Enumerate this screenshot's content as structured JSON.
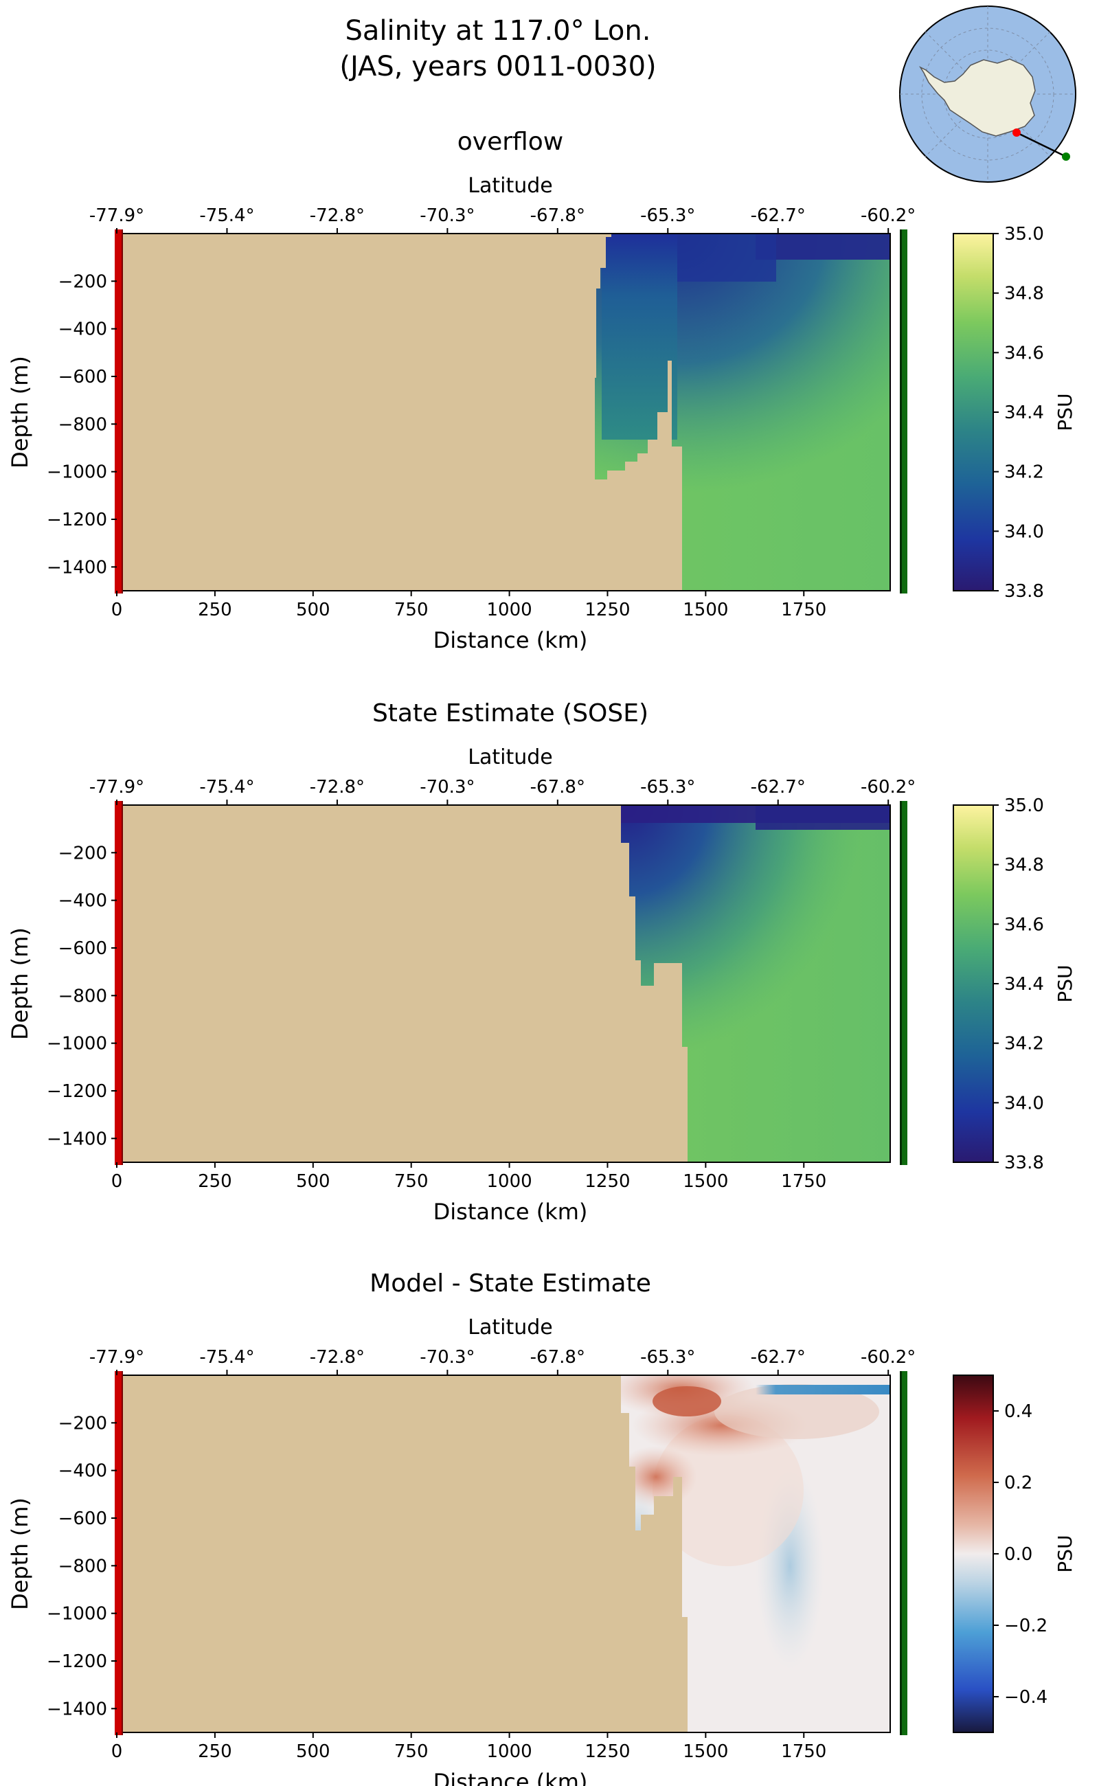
{
  "figure": {
    "title_line1": "Salinity at 117.0° Lon.",
    "title_line2": "(JAS, years 0011-0030)"
  },
  "inset_map": {
    "description_visible": "",
    "ocean_color": "#9bbde6",
    "land_color": "#efeedd",
    "start_marker_color": "#ff0000",
    "end_marker_color": "#008000"
  },
  "colors": {
    "land_mask": "#d8c29a",
    "start_line": "#cc0000",
    "end_line": "#0f6b0f"
  },
  "chart_data": [
    {
      "type": "heatmap",
      "title": "overflow",
      "xlabel": "Distance (km)",
      "ylabel": "Depth (m)",
      "top_xlabel": "Latitude",
      "x_ticks": [
        0,
        250,
        500,
        750,
        1000,
        1250,
        1500,
        1750
      ],
      "x_tick_labels": [
        "0",
        "250",
        "500",
        "750",
        "1000",
        "1250",
        "1500",
        "1750"
      ],
      "lat_tick_labels": [
        "-77.9°",
        "-75.4°",
        "-72.8°",
        "-70.3°",
        "-67.8°",
        "-65.3°",
        "-62.7°",
        "-60.2°"
      ],
      "y_ticks": [
        -200,
        -400,
        -600,
        -800,
        -1000,
        -1200,
        -1400
      ],
      "y_tick_labels": [
        "−200",
        "−400",
        "−600",
        "−800",
        "−1000",
        "−1200",
        "−1400"
      ],
      "xlim": [
        0,
        1970
      ],
      "ylim": [
        -1500,
        0
      ],
      "colorbar": {
        "label": "PSU",
        "range": [
          33.8,
          35.0
        ],
        "ticks": [
          33.8,
          34.0,
          34.2,
          34.4,
          34.6,
          34.8,
          35.0
        ],
        "tick_labels": [
          "33.8",
          "34.0",
          "34.2",
          "34.4",
          "34.6",
          "34.8",
          "35.0"
        ],
        "colormap": "haline"
      },
      "bathymetry_km_depth": [
        [
          1220,
          -30
        ],
        [
          1220,
          -630
        ],
        [
          1245,
          -630
        ],
        [
          1245,
          -580
        ],
        [
          1290,
          -580
        ],
        [
          1290,
          -520
        ],
        [
          1315,
          -520
        ],
        [
          1315,
          -470
        ],
        [
          1345,
          -470
        ],
        [
          1345,
          -390
        ],
        [
          1375,
          -390
        ],
        [
          1375,
          -570
        ],
        [
          1410,
          -570
        ],
        [
          1410,
          -1500
        ]
      ],
      "salinity_features": [
        {
          "region": "surface layer near shelf",
          "x_range": [
            1240,
            1600
          ],
          "depth_range": [
            -200,
            0
          ],
          "value": 33.95
        },
        {
          "region": "surface fresh lens offshore",
          "x_range": [
            1650,
            1960
          ],
          "depth_range": [
            -80,
            0
          ],
          "value": 33.85
        },
        {
          "region": "shelf water",
          "x_range": [
            1220,
            1400
          ],
          "depth_range": [
            -630,
            -200
          ],
          "value": 34.3
        },
        {
          "region": "deep water",
          "x_range": [
            1410,
            1960
          ],
          "depth_range": [
            -1500,
            -300
          ],
          "value": 34.65
        }
      ]
    },
    {
      "type": "heatmap",
      "title": "State Estimate (SOSE)",
      "xlabel": "Distance (km)",
      "ylabel": "Depth (m)",
      "top_xlabel": "Latitude",
      "x_ticks": [
        0,
        250,
        500,
        750,
        1000,
        1250,
        1500,
        1750
      ],
      "x_tick_labels": [
        "0",
        "250",
        "500",
        "750",
        "1000",
        "1250",
        "1500",
        "1750"
      ],
      "lat_tick_labels": [
        "-77.9°",
        "-75.4°",
        "-72.8°",
        "-70.3°",
        "-67.8°",
        "-65.3°",
        "-62.7°",
        "-60.2°"
      ],
      "y_ticks": [
        -200,
        -400,
        -600,
        -800,
        -1000,
        -1200,
        -1400
      ],
      "y_tick_labels": [
        "−200",
        "−400",
        "−600",
        "−800",
        "−1000",
        "−1200",
        "−1400"
      ],
      "xlim": [
        0,
        1970
      ],
      "ylim": [
        -1500,
        0
      ],
      "colorbar": {
        "label": "PSU",
        "range": [
          33.8,
          35.0
        ],
        "ticks": [
          33.8,
          34.0,
          34.2,
          34.4,
          34.6,
          34.8,
          35.0
        ],
        "tick_labels": [
          "33.8",
          "34.0",
          "34.2",
          "34.4",
          "34.6",
          "34.8",
          "35.0"
        ],
        "colormap": "haline"
      },
      "bathymetry_km_depth": [
        [
          1255,
          -10
        ],
        [
          1255,
          -160
        ],
        [
          1275,
          -160
        ],
        [
          1275,
          -430
        ],
        [
          1290,
          -430
        ],
        [
          1290,
          -650
        ],
        [
          1305,
          -650
        ],
        [
          1305,
          -760
        ],
        [
          1335,
          -760
        ],
        [
          1335,
          -660
        ],
        [
          1410,
          -660
        ],
        [
          1410,
          -1020
        ],
        [
          1425,
          -1020
        ],
        [
          1425,
          -1500
        ]
      ],
      "salinity_features": [
        {
          "region": "surface fresh layer",
          "x_range": [
            1255,
            1960
          ],
          "depth_range": [
            -100,
            0
          ],
          "value": 33.85
        },
        {
          "region": "upper shelf water",
          "x_range": [
            1255,
            1450
          ],
          "depth_range": [
            -500,
            -100
          ],
          "value": 34.2
        },
        {
          "region": "deep water",
          "x_range": [
            1425,
            1960
          ],
          "depth_range": [
            -1500,
            -400
          ],
          "value": 34.65
        }
      ]
    },
    {
      "type": "heatmap",
      "title": "Model - State Estimate",
      "xlabel": "Distance (km)",
      "ylabel": "Depth (m)",
      "top_xlabel": "Latitude",
      "x_ticks": [
        0,
        250,
        500,
        750,
        1000,
        1250,
        1500,
        1750
      ],
      "x_tick_labels": [
        "0",
        "250",
        "500",
        "750",
        "1000",
        "1250",
        "1500",
        "1750"
      ],
      "lat_tick_labels": [
        "-77.9°",
        "-75.4°",
        "-72.8°",
        "-70.3°",
        "-67.8°",
        "-65.3°",
        "-62.7°",
        "-60.2°"
      ],
      "y_ticks": [
        -200,
        -400,
        -600,
        -800,
        -1000,
        -1200,
        -1400
      ],
      "y_tick_labels": [
        "−200",
        "−400",
        "−600",
        "−800",
        "−1000",
        "−1200",
        "−1400"
      ],
      "xlim": [
        0,
        1970
      ],
      "ylim": [
        -1500,
        0
      ],
      "colorbar": {
        "label": "PSU",
        "range": [
          -0.5,
          0.5
        ],
        "ticks": [
          -0.4,
          -0.2,
          0.0,
          0.2,
          0.4
        ],
        "tick_labels": [
          "−0.4",
          "−0.2",
          "0.0",
          "0.2",
          "0.4"
        ],
        "colormap": "balance"
      },
      "bathymetry_km_depth": [
        [
          1255,
          -10
        ],
        [
          1255,
          -160
        ],
        [
          1275,
          -160
        ],
        [
          1275,
          -430
        ],
        [
          1290,
          -430
        ],
        [
          1290,
          -650
        ],
        [
          1305,
          -650
        ],
        [
          1305,
          -580
        ],
        [
          1345,
          -580
        ],
        [
          1345,
          -470
        ],
        [
          1380,
          -470
        ],
        [
          1380,
          -390
        ],
        [
          1410,
          -390
        ],
        [
          1410,
          -1020
        ],
        [
          1425,
          -1020
        ],
        [
          1425,
          -1500
        ]
      ],
      "difference_features": [
        {
          "region": "surface positive anomaly",
          "x_range": [
            1260,
            1600
          ],
          "depth_range": [
            -100,
            0
          ],
          "value": 0.2
        },
        {
          "region": "offshore surface negative band",
          "x_range": [
            1620,
            1960
          ],
          "depth_range": [
            -70,
            -30
          ],
          "value": -0.2
        },
        {
          "region": "upper positive patches",
          "x_range": [
            1270,
            1700
          ],
          "depth_range": [
            -350,
            -100
          ],
          "value": 0.12
        },
        {
          "region": "negative patch on slope",
          "x_range": [
            1285,
            1330
          ],
          "depth_range": [
            -630,
            -350
          ],
          "value": -0.12
        },
        {
          "region": "deep interior",
          "x_range": [
            1425,
            1960
          ],
          "depth_range": [
            -1500,
            -400
          ],
          "value": -0.02
        }
      ]
    }
  ]
}
